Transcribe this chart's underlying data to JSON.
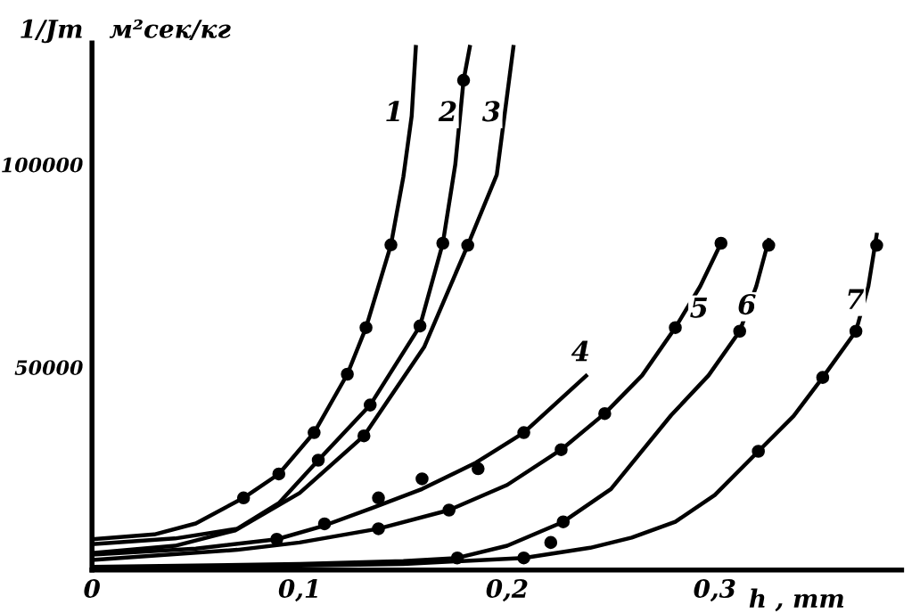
{
  "chart_data": {
    "type": "line",
    "xlabel": "h , mm",
    "ylabel": "1/Jт   м²сек/кг",
    "xlim": [
      0,
      0.39
    ],
    "ylim": [
      0,
      130000
    ],
    "xticks": [
      {
        "value": 0,
        "label": "0"
      },
      {
        "value": 0.1,
        "label": "0,1"
      },
      {
        "value": 0.2,
        "label": "0,2"
      },
      {
        "value": 0.3,
        "label": "0,3"
      }
    ],
    "yticks": [
      50000,
      100000
    ],
    "grid": false,
    "legend": false,
    "line_style": "solid",
    "series": [
      {
        "name": "1",
        "color": "#000000",
        "x": [
          0,
          0.03,
          0.05,
          0.073,
          0.09,
          0.107,
          0.123,
          0.132,
          0.144,
          0.15,
          0.154,
          0.156
        ],
        "values": [
          7600,
          8800,
          11500,
          17800,
          23700,
          33900,
          48300,
          59800,
          80200,
          97000,
          112000,
          129000
        ]
      },
      {
        "name": "2",
        "color": "#000000",
        "x": [
          0,
          0.04,
          0.07,
          0.09,
          0.109,
          0.134,
          0.158,
          0.169,
          0.175,
          0.179,
          0.182
        ],
        "values": [
          6400,
          7800,
          10200,
          16500,
          27100,
          40700,
          60200,
          80600,
          100000,
          120800,
          129000
        ]
      },
      {
        "name": "3",
        "color": "#000000",
        "x": [
          0,
          0.04,
          0.069,
          0.1,
          0.131,
          0.16,
          0.181,
          0.195,
          0.203
        ],
        "values": [
          4200,
          6000,
          9800,
          19000,
          33100,
          55000,
          80100,
          97500,
          129000
        ]
      },
      {
        "name": "4",
        "color": "#000000",
        "x": [
          0,
          0.05,
          0.089,
          0.112,
          0.135,
          0.159,
          0.185,
          0.208,
          0.238
        ],
        "values": [
          3800,
          5300,
          7600,
          11000,
          15300,
          20000,
          26500,
          33900,
          47900
        ]
      },
      {
        "name": "5",
        "color": "#000000",
        "x": [
          0,
          0.07,
          0.1,
          0.138,
          0.172,
          0.2,
          0.226,
          0.247,
          0.265,
          0.281,
          0.293,
          0.303
        ],
        "values": [
          2500,
          5000,
          6800,
          10200,
          14800,
          21000,
          29700,
          38600,
          48000,
          59800,
          70000,
          80600
        ]
      },
      {
        "name": "6",
        "color": "#000000",
        "x": [
          0,
          0.1,
          0.15,
          0.176,
          0.2,
          0.227,
          0.25,
          0.279,
          0.297,
          0.312,
          0.32,
          0.326
        ],
        "values": [
          800,
          1500,
          2200,
          3000,
          6000,
          11900,
          20000,
          38200,
          48000,
          58900,
          70000,
          81400
        ]
      },
      {
        "name": "7",
        "color": "#000000",
        "x": [
          0,
          0.15,
          0.208,
          0.24,
          0.26,
          0.281,
          0.3,
          0.321,
          0.338,
          0.352,
          0.368,
          0.374,
          0.378
        ],
        "values": [
          300,
          1500,
          3000,
          5500,
          8000,
          11900,
          18500,
          29300,
          38000,
          47500,
          58900,
          70000,
          82700
        ]
      },
      {
        "type": "scatter",
        "marker": "circle",
        "color": "#000000",
        "x": [
          0.073,
          0.09,
          0.107,
          0.123,
          0.132,
          0.144,
          0.109,
          0.134,
          0.158,
          0.169,
          0.179,
          0.131,
          0.181,
          0.089,
          0.112,
          0.138,
          0.159,
          0.186,
          0.208,
          0.138,
          0.172,
          0.226,
          0.247,
          0.281,
          0.303,
          0.176,
          0.221,
          0.227,
          0.312,
          0.326,
          0.208,
          0.321,
          0.352,
          0.368,
          0.378
        ],
        "values": [
          17800,
          23700,
          33900,
          48300,
          59800,
          80200,
          27100,
          40700,
          60200,
          80600,
          120800,
          33100,
          80100,
          7600,
          11400,
          17800,
          22500,
          25000,
          33900,
          10200,
          14800,
          29700,
          38600,
          59800,
          80600,
          3000,
          6800,
          11900,
          58900,
          80100,
          3000,
          29300,
          47500,
          58900,
          80100
        ]
      }
    ]
  }
}
